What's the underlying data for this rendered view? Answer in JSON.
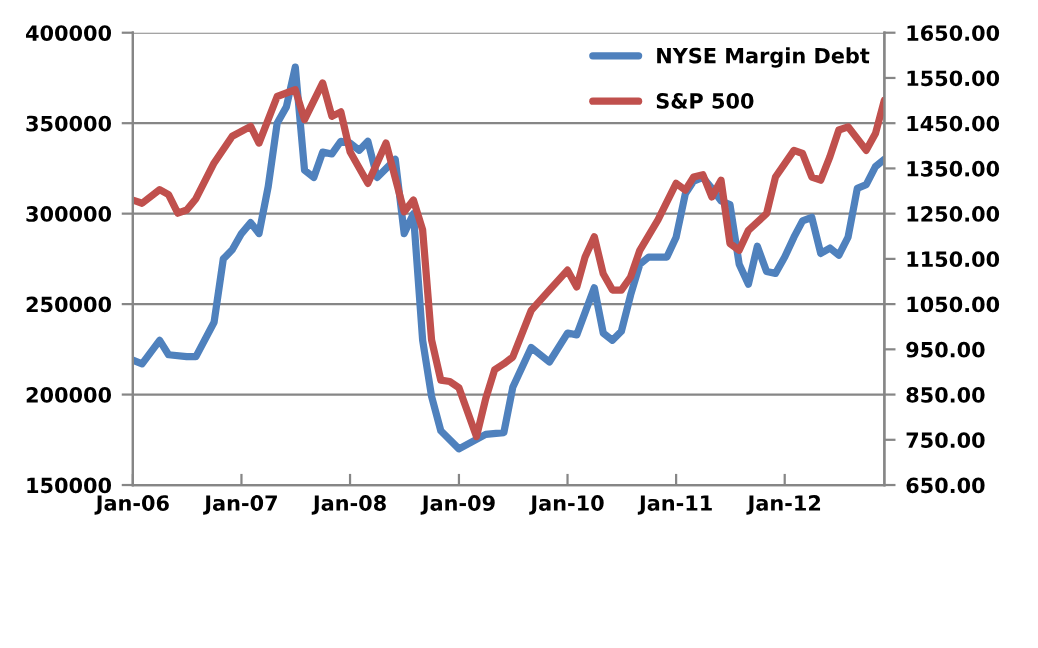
{
  "chart_data": {
    "type": "line",
    "xlim": [
      "2006-01",
      "2012-12"
    ],
    "xticks": [
      {
        "value": "2006-01",
        "label": "Jan-06"
      },
      {
        "value": "2007-01",
        "label": "Jan-07"
      },
      {
        "value": "2008-01",
        "label": "Jan-08"
      },
      {
        "value": "2009-01",
        "label": "Jan-09"
      },
      {
        "value": "2010-01",
        "label": "Jan-10"
      },
      {
        "value": "2011-01",
        "label": "Jan-11"
      },
      {
        "value": "2012-01",
        "label": "Jan-12"
      }
    ],
    "ylim": [
      150000,
      400000
    ],
    "yticks": [
      150000,
      200000,
      250000,
      300000,
      350000,
      400000
    ],
    "y2lim": [
      650,
      1650
    ],
    "y2ticks": [
      {
        "value": 650,
        "label": "650.00"
      },
      {
        "value": 750,
        "label": "750.00"
      },
      {
        "value": 850,
        "label": "850.00"
      },
      {
        "value": 950,
        "label": "950.00"
      },
      {
        "value": 1050,
        "label": "1050.00"
      },
      {
        "value": 1150,
        "label": "1150.00"
      },
      {
        "value": 1250,
        "label": "1250.00"
      },
      {
        "value": 1350,
        "label": "1350.00"
      },
      {
        "value": 1450,
        "label": "1450.00"
      },
      {
        "value": 1550,
        "label": "1550.00"
      },
      {
        "value": 1650,
        "label": "1650.00"
      }
    ],
    "grid": "y",
    "legend": "top right",
    "marker": "none",
    "line_style": "solid",
    "series": [
      {
        "name": "NYSE Margin Debt",
        "color": "#4f81bd",
        "x": [
          "2006-01",
          "2006-02",
          "2006-04",
          "2006-05",
          "2006-07",
          "2006-08",
          "2006-10",
          "2006-11",
          "2006-12",
          "2007-01",
          "2007-02",
          "2007-03",
          "2007-04",
          "2007-05",
          "2007-06",
          "2007-07",
          "2007-08",
          "2007-09",
          "2007-10",
          "2007-11",
          "2007-12",
          "2008-01",
          "2008-02",
          "2008-03",
          "2008-04",
          "2008-06",
          "2008-07",
          "2008-08",
          "2008-09",
          "2008-10",
          "2008-11",
          "2009-01",
          "2009-04",
          "2009-06",
          "2009-07",
          "2009-09",
          "2009-11",
          "2010-01",
          "2010-02",
          "2010-04",
          "2010-05",
          "2010-06",
          "2010-07",
          "2010-08",
          "2010-09",
          "2010-10",
          "2010-12",
          "2011-01",
          "2011-02",
          "2011-03",
          "2011-04",
          "2011-05",
          "2011-06",
          "2011-07",
          "2011-08",
          "2011-09",
          "2011-10",
          "2011-11",
          "2011-12",
          "2012-01",
          "2012-02",
          "2012-03",
          "2012-04",
          "2012-05",
          "2012-06",
          "2012-07",
          "2012-08",
          "2012-09",
          "2012-10",
          "2012-11",
          "2012-12"
        ],
        "values": [
          219000,
          217000,
          230000,
          222000,
          221000,
          221000,
          240000,
          275000,
          280000,
          289000,
          295000,
          289000,
          315000,
          350000,
          359000,
          381000,
          324000,
          320000,
          334000,
          333000,
          340000,
          339000,
          335000,
          340000,
          320000,
          330000,
          289000,
          300000,
          230000,
          199000,
          180000,
          170000,
          178000,
          179000,
          204000,
          226000,
          218000,
          234000,
          233000,
          259000,
          234000,
          230000,
          235000,
          255000,
          272000,
          276000,
          276000,
          287000,
          311000,
          318000,
          320000,
          314000,
          307000,
          305000,
          272000,
          261000,
          282000,
          268000,
          267000,
          276000,
          287000,
          296000,
          298000,
          278000,
          281000,
          277000,
          287000,
          314000,
          316000,
          326000,
          330000
        ]
      },
      {
        "name": "S&P 500",
        "color": "#c0504d",
        "axis": "y2",
        "x": [
          "2006-01",
          "2006-02",
          "2006-04",
          "2006-05",
          "2006-06",
          "2006-07",
          "2006-08",
          "2006-10",
          "2006-12",
          "2007-02",
          "2007-03",
          "2007-05",
          "2007-07",
          "2007-08",
          "2007-10",
          "2007-11",
          "2007-12",
          "2008-01",
          "2008-03",
          "2008-04",
          "2008-05",
          "2008-07",
          "2008-08",
          "2008-09",
          "2008-10",
          "2008-11",
          "2008-12",
          "2009-01",
          "2009-03",
          "2009-04",
          "2009-05",
          "2009-06",
          "2009-07",
          "2009-09",
          "2009-11",
          "2010-01",
          "2010-02",
          "2010-03",
          "2010-04",
          "2010-05",
          "2010-06",
          "2010-07",
          "2010-08",
          "2010-09",
          "2010-11",
          "2011-01",
          "2011-02",
          "2011-03",
          "2011-04",
          "2011-05",
          "2011-06",
          "2011-07",
          "2011-08",
          "2011-09",
          "2011-11",
          "2011-12",
          "2012-02",
          "2012-03",
          "2012-04",
          "2012-05",
          "2012-06",
          "2012-07",
          "2012-08",
          "2012-10",
          "2012-11",
          "2012-12"
        ],
        "values": [
          1280,
          1273,
          1303,
          1292,
          1251,
          1258,
          1283,
          1362,
          1421,
          1443,
          1406,
          1509,
          1524,
          1458,
          1539,
          1465,
          1475,
          1387,
          1317,
          1362,
          1406,
          1254,
          1280,
          1214,
          971,
          882,
          879,
          865,
          757,
          841,
          905,
          918,
          933,
          1036,
          1081,
          1125,
          1088,
          1154,
          1199,
          1117,
          1081,
          1081,
          1110,
          1169,
          1236,
          1317,
          1302,
          1331,
          1336,
          1287,
          1324,
          1184,
          1169,
          1213,
          1250,
          1331,
          1390,
          1383,
          1331,
          1324,
          1376,
          1435,
          1442,
          1390,
          1427,
          1501
        ]
      }
    ]
  }
}
